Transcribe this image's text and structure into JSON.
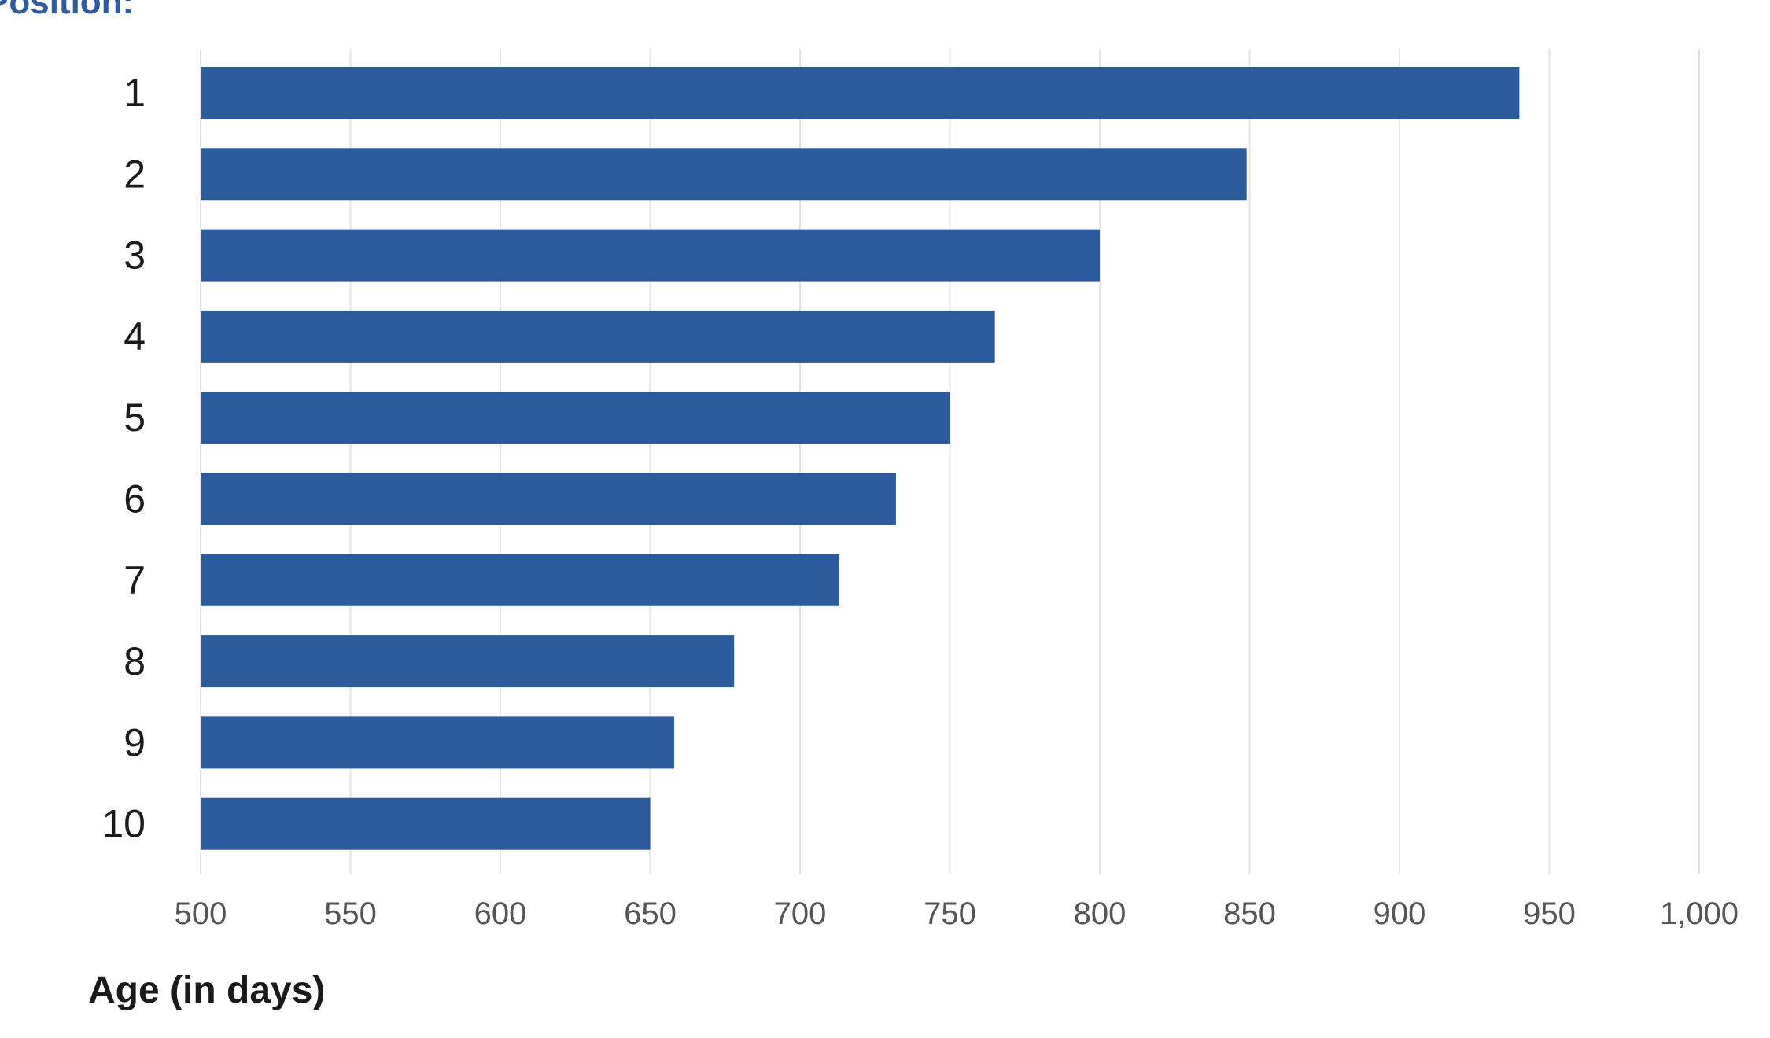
{
  "chart_data": {
    "type": "bar",
    "orientation": "horizontal",
    "category_axis_title": "Position:",
    "xlabel": "Age (in days)",
    "categories": [
      "1",
      "2",
      "3",
      "4",
      "5",
      "6",
      "7",
      "8",
      "9",
      "10"
    ],
    "values": [
      940,
      849,
      800,
      765,
      750,
      732,
      713,
      678,
      658,
      650
    ],
    "xlim": [
      500,
      1000
    ],
    "xticks": [
      500,
      550,
      600,
      650,
      700,
      750,
      800,
      850,
      900,
      950,
      1000
    ],
    "xtick_labels": [
      "500",
      "550",
      "600",
      "650",
      "700",
      "750",
      "800",
      "850",
      "900",
      "950",
      "1,000"
    ],
    "grid": "vertical",
    "bar_color": "#2b5a9d",
    "grid_color": "#e4e4e4"
  }
}
